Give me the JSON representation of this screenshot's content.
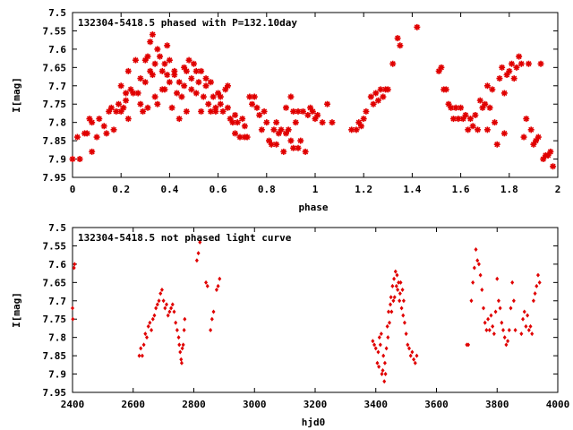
{
  "chart_data": [
    {
      "type": "scatter",
      "title": "132304-5418.5 phased with P=132.10day",
      "xlabel": "phase",
      "ylabel": "I[mag]",
      "xlim": [
        0,
        2
      ],
      "ylim": [
        7.95,
        7.5
      ],
      "y_inverted": true,
      "xticks": [
        "0",
        "0.2",
        "0.4",
        "0.6",
        "0.8",
        "1",
        "1.2",
        "1.4",
        "1.6",
        "1.8",
        "2"
      ],
      "yticks": [
        "7.5",
        "7.55",
        "7.6",
        "7.65",
        "7.7",
        "7.75",
        "7.8",
        "7.85",
        "7.9",
        "7.95"
      ],
      "grid": false,
      "marker": "plus-star",
      "color": "#e00000",
      "points": [
        [
          0.0,
          7.9
        ],
        [
          0.02,
          7.84
        ],
        [
          0.03,
          7.9
        ],
        [
          0.05,
          7.83
        ],
        [
          0.06,
          7.83
        ],
        [
          0.07,
          7.79
        ],
        [
          0.08,
          7.8
        ],
        [
          0.08,
          7.88
        ],
        [
          0.1,
          7.84
        ],
        [
          0.11,
          7.79
        ],
        [
          0.13,
          7.81
        ],
        [
          0.14,
          7.83
        ],
        [
          0.15,
          7.77
        ],
        [
          0.16,
          7.76
        ],
        [
          0.17,
          7.82
        ],
        [
          0.18,
          7.77
        ],
        [
          0.19,
          7.75
        ],
        [
          0.2,
          7.77
        ],
        [
          0.2,
          7.7
        ],
        [
          0.21,
          7.76
        ],
        [
          0.22,
          7.74
        ],
        [
          0.22,
          7.72
        ],
        [
          0.23,
          7.66
        ],
        [
          0.23,
          7.79
        ],
        [
          0.24,
          7.71
        ],
        [
          0.25,
          7.72
        ],
        [
          0.26,
          7.63
        ],
        [
          0.27,
          7.72
        ],
        [
          0.28,
          7.68
        ],
        [
          0.28,
          7.75
        ],
        [
          0.29,
          7.77
        ],
        [
          0.3,
          7.63
        ],
        [
          0.3,
          7.69
        ],
        [
          0.31,
          7.76
        ],
        [
          0.31,
          7.62
        ],
        [
          0.32,
          7.66
        ],
        [
          0.32,
          7.58
        ],
        [
          0.33,
          7.67
        ],
        [
          0.33,
          7.56
        ],
        [
          0.34,
          7.73
        ],
        [
          0.34,
          7.64
        ],
        [
          0.35,
          7.6
        ],
        [
          0.35,
          7.75
        ],
        [
          0.36,
          7.62
        ],
        [
          0.37,
          7.71
        ],
        [
          0.37,
          7.66
        ],
        [
          0.38,
          7.64
        ],
        [
          0.38,
          7.71
        ],
        [
          0.39,
          7.59
        ],
        [
          0.39,
          7.67
        ],
        [
          0.4,
          7.69
        ],
        [
          0.4,
          7.63
        ],
        [
          0.41,
          7.76
        ],
        [
          0.42,
          7.67
        ],
        [
          0.42,
          7.66
        ],
        [
          0.43,
          7.72
        ],
        [
          0.44,
          7.69
        ],
        [
          0.44,
          7.79
        ],
        [
          0.45,
          7.73
        ],
        [
          0.46,
          7.65
        ],
        [
          0.46,
          7.7
        ],
        [
          0.47,
          7.66
        ],
        [
          0.47,
          7.77
        ],
        [
          0.48,
          7.63
        ],
        [
          0.49,
          7.68
        ],
        [
          0.49,
          7.71
        ],
        [
          0.5,
          7.64
        ],
        [
          0.51,
          7.66
        ],
        [
          0.51,
          7.72
        ],
        [
          0.52,
          7.69
        ],
        [
          0.53,
          7.77
        ],
        [
          0.53,
          7.66
        ],
        [
          0.54,
          7.73
        ],
        [
          0.55,
          7.7
        ],
        [
          0.55,
          7.68
        ],
        [
          0.56,
          7.75
        ],
        [
          0.57,
          7.69
        ],
        [
          0.57,
          7.77
        ],
        [
          0.58,
          7.73
        ],
        [
          0.59,
          7.77
        ],
        [
          0.59,
          7.76
        ],
        [
          0.6,
          7.72
        ],
        [
          0.61,
          7.73
        ],
        [
          0.61,
          7.75
        ],
        [
          0.62,
          7.77
        ],
        [
          0.63,
          7.71
        ],
        [
          0.64,
          7.76
        ],
        [
          0.64,
          7.7
        ],
        [
          0.65,
          7.79
        ],
        [
          0.66,
          7.8
        ],
        [
          0.67,
          7.78
        ],
        [
          0.67,
          7.83
        ],
        [
          0.68,
          7.8
        ],
        [
          0.69,
          7.84
        ],
        [
          0.7,
          7.79
        ],
        [
          0.71,
          7.81
        ],
        [
          0.71,
          7.84
        ],
        [
          0.72,
          7.84
        ],
        [
          0.73,
          7.73
        ],
        [
          0.74,
          7.75
        ],
        [
          0.75,
          7.73
        ],
        [
          0.76,
          7.76
        ],
        [
          0.77,
          7.78
        ],
        [
          0.78,
          7.82
        ],
        [
          0.79,
          7.77
        ],
        [
          0.8,
          7.8
        ],
        [
          0.81,
          7.85
        ],
        [
          0.82,
          7.86
        ],
        [
          0.83,
          7.82
        ],
        [
          0.84,
          7.86
        ],
        [
          0.84,
          7.8
        ],
        [
          0.85,
          7.83
        ],
        [
          0.86,
          7.82
        ],
        [
          0.87,
          7.88
        ],
        [
          0.88,
          7.76
        ],
        [
          0.88,
          7.83
        ],
        [
          0.89,
          7.82
        ],
        [
          0.9,
          7.85
        ],
        [
          0.9,
          7.73
        ],
        [
          0.91,
          7.77
        ],
        [
          0.91,
          7.87
        ],
        [
          0.92,
          7.8
        ],
        [
          0.93,
          7.87
        ],
        [
          0.93,
          7.77
        ],
        [
          0.94,
          7.85
        ],
        [
          0.95,
          7.77
        ],
        [
          0.96,
          7.88
        ],
        [
          0.97,
          7.78
        ],
        [
          0.98,
          7.76
        ],
        [
          0.99,
          7.77
        ],
        [
          1.0,
          7.79
        ],
        [
          1.01,
          7.78
        ],
        [
          1.03,
          7.8
        ],
        [
          1.05,
          7.75
        ],
        [
          1.07,
          7.8
        ],
        [
          1.15,
          7.82
        ],
        [
          1.17,
          7.82
        ],
        [
          1.18,
          7.8
        ],
        [
          1.19,
          7.81
        ],
        [
          1.2,
          7.79
        ],
        [
          1.21,
          7.77
        ],
        [
          1.23,
          7.73
        ],
        [
          1.24,
          7.75
        ],
        [
          1.25,
          7.72
        ],
        [
          1.26,
          7.74
        ],
        [
          1.27,
          7.71
        ],
        [
          1.28,
          7.73
        ],
        [
          1.29,
          7.71
        ],
        [
          1.3,
          7.71
        ],
        [
          1.32,
          7.64
        ],
        [
          1.34,
          7.57
        ],
        [
          1.35,
          7.59
        ],
        [
          1.42,
          7.54
        ],
        [
          1.51,
          7.66
        ],
        [
          1.52,
          7.65
        ],
        [
          1.53,
          7.71
        ],
        [
          1.54,
          7.71
        ],
        [
          1.55,
          7.75
        ],
        [
          1.56,
          7.76
        ],
        [
          1.57,
          7.79
        ],
        [
          1.58,
          7.76
        ],
        [
          1.59,
          7.79
        ],
        [
          1.6,
          7.76
        ],
        [
          1.61,
          7.79
        ],
        [
          1.62,
          7.78
        ],
        [
          1.63,
          7.82
        ],
        [
          1.64,
          7.79
        ],
        [
          1.65,
          7.81
        ],
        [
          1.66,
          7.78
        ],
        [
          1.67,
          7.82
        ],
        [
          1.68,
          7.74
        ],
        [
          1.69,
          7.76
        ],
        [
          1.7,
          7.75
        ],
        [
          1.71,
          7.7
        ],
        [
          1.71,
          7.82
        ],
        [
          1.72,
          7.76
        ],
        [
          1.73,
          7.71
        ],
        [
          1.74,
          7.8
        ],
        [
          1.75,
          7.86
        ],
        [
          1.76,
          7.68
        ],
        [
          1.77,
          7.65
        ],
        [
          1.78,
          7.72
        ],
        [
          1.78,
          7.83
        ],
        [
          1.79,
          7.67
        ],
        [
          1.8,
          7.66
        ],
        [
          1.81,
          7.64
        ],
        [
          1.82,
          7.68
        ],
        [
          1.83,
          7.65
        ],
        [
          1.84,
          7.62
        ],
        [
          1.85,
          7.64
        ],
        [
          1.86,
          7.84
        ],
        [
          1.87,
          7.79
        ],
        [
          1.88,
          7.64
        ],
        [
          1.89,
          7.82
        ],
        [
          1.9,
          7.86
        ],
        [
          1.91,
          7.85
        ],
        [
          1.92,
          7.84
        ],
        [
          1.93,
          7.64
        ],
        [
          1.94,
          7.9
        ],
        [
          1.95,
          7.89
        ],
        [
          1.96,
          7.89
        ],
        [
          1.97,
          7.88
        ],
        [
          1.98,
          7.92
        ]
      ]
    },
    {
      "type": "scatter",
      "title": "132304-5418.5 not phased light curve",
      "xlabel": "hjd0",
      "ylabel": "I[mag]",
      "xlim": [
        2400,
        4000
      ],
      "ylim": [
        7.95,
        7.5
      ],
      "y_inverted": true,
      "xticks": [
        "2400",
        "2600",
        "2800",
        "3000",
        "3200",
        "3400",
        "3600",
        "3800",
        "4000"
      ],
      "yticks": [
        "7.5",
        "7.55",
        "7.6",
        "7.65",
        "7.7",
        "7.75",
        "7.8",
        "7.85",
        "7.9",
        "7.95"
      ],
      "grid": false,
      "marker": "diamond",
      "color": "#e00000",
      "points": [
        [
          2400,
          7.72
        ],
        [
          2401,
          7.75
        ],
        [
          2405,
          7.61
        ],
        [
          2407,
          7.6
        ],
        [
          2620,
          7.85
        ],
        [
          2625,
          7.83
        ],
        [
          2630,
          7.85
        ],
        [
          2635,
          7.82
        ],
        [
          2640,
          7.79
        ],
        [
          2645,
          7.8
        ],
        [
          2650,
          7.77
        ],
        [
          2655,
          7.76
        ],
        [
          2660,
          7.78
        ],
        [
          2665,
          7.75
        ],
        [
          2670,
          7.74
        ],
        [
          2675,
          7.72
        ],
        [
          2680,
          7.71
        ],
        [
          2685,
          7.7
        ],
        [
          2690,
          7.68
        ],
        [
          2695,
          7.67
        ],
        [
          2700,
          7.7
        ],
        [
          2705,
          7.72
        ],
        [
          2710,
          7.71
        ],
        [
          2715,
          7.74
        ],
        [
          2720,
          7.73
        ],
        [
          2725,
          7.72
        ],
        [
          2730,
          7.71
        ],
        [
          2735,
          7.73
        ],
        [
          2740,
          7.76
        ],
        [
          2745,
          7.78
        ],
        [
          2750,
          7.8
        ],
        [
          2752,
          7.82
        ],
        [
          2755,
          7.84
        ],
        [
          2758,
          7.86
        ],
        [
          2760,
          7.87
        ],
        [
          2762,
          7.83
        ],
        [
          2765,
          7.82
        ],
        [
          2768,
          7.78
        ],
        [
          2770,
          7.75
        ],
        [
          2810,
          7.59
        ],
        [
          2815,
          7.57
        ],
        [
          2820,
          7.54
        ],
        [
          2840,
          7.65
        ],
        [
          2845,
          7.66
        ],
        [
          2855,
          7.78
        ],
        [
          2860,
          7.75
        ],
        [
          2865,
          7.73
        ],
        [
          2875,
          7.67
        ],
        [
          2880,
          7.66
        ],
        [
          2885,
          7.64
        ],
        [
          3390,
          7.81
        ],
        [
          3395,
          7.82
        ],
        [
          3400,
          7.83
        ],
        [
          3405,
          7.87
        ],
        [
          3408,
          7.84
        ],
        [
          3410,
          7.88
        ],
        [
          3412,
          7.8
        ],
        [
          3415,
          7.82
        ],
        [
          3418,
          7.79
        ],
        [
          3420,
          7.9
        ],
        [
          3423,
          7.89
        ],
        [
          3425,
          7.85
        ],
        [
          3428,
          7.92
        ],
        [
          3430,
          7.87
        ],
        [
          3432,
          7.9
        ],
        [
          3435,
          7.83
        ],
        [
          3438,
          7.77
        ],
        [
          3440,
          7.8
        ],
        [
          3442,
          7.73
        ],
        [
          3445,
          7.76
        ],
        [
          3448,
          7.71
        ],
        [
          3450,
          7.69
        ],
        [
          3452,
          7.73
        ],
        [
          3455,
          7.66
        ],
        [
          3458,
          7.7
        ],
        [
          3460,
          7.64
        ],
        [
          3462,
          7.69
        ],
        [
          3465,
          7.62
        ],
        [
          3468,
          7.66
        ],
        [
          3470,
          7.63
        ],
        [
          3472,
          7.67
        ],
        [
          3475,
          7.65
        ],
        [
          3478,
          7.7
        ],
        [
          3480,
          7.68
        ],
        [
          3482,
          7.65
        ],
        [
          3485,
          7.72
        ],
        [
          3488,
          7.67
        ],
        [
          3490,
          7.74
        ],
        [
          3492,
          7.7
        ],
        [
          3495,
          7.76
        ],
        [
          3500,
          7.79
        ],
        [
          3505,
          7.82
        ],
        [
          3510,
          7.83
        ],
        [
          3515,
          7.85
        ],
        [
          3520,
          7.84
        ],
        [
          3525,
          7.86
        ],
        [
          3530,
          7.87
        ],
        [
          3535,
          7.85
        ],
        [
          3700,
          7.82
        ],
        [
          3705,
          7.82
        ],
        [
          3715,
          7.7
        ],
        [
          3720,
          7.65
        ],
        [
          3725,
          7.61
        ],
        [
          3730,
          7.56
        ],
        [
          3735,
          7.59
        ],
        [
          3740,
          7.6
        ],
        [
          3745,
          7.63
        ],
        [
          3750,
          7.67
        ],
        [
          3755,
          7.72
        ],
        [
          3760,
          7.76
        ],
        [
          3765,
          7.78
        ],
        [
          3770,
          7.75
        ],
        [
          3775,
          7.78
        ],
        [
          3780,
          7.74
        ],
        [
          3785,
          7.77
        ],
        [
          3790,
          7.79
        ],
        [
          3795,
          7.73
        ],
        [
          3800,
          7.64
        ],
        [
          3805,
          7.7
        ],
        [
          3810,
          7.72
        ],
        [
          3815,
          7.76
        ],
        [
          3820,
          7.78
        ],
        [
          3825,
          7.8
        ],
        [
          3830,
          7.82
        ],
        [
          3835,
          7.81
        ],
        [
          3840,
          7.78
        ],
        [
          3845,
          7.72
        ],
        [
          3850,
          7.65
        ],
        [
          3855,
          7.7
        ],
        [
          3860,
          7.78
        ],
        [
          3880,
          7.79
        ],
        [
          3885,
          7.75
        ],
        [
          3890,
          7.73
        ],
        [
          3895,
          7.77
        ],
        [
          3900,
          7.74
        ],
        [
          3905,
          7.78
        ],
        [
          3910,
          7.77
        ],
        [
          3915,
          7.79
        ],
        [
          3920,
          7.7
        ],
        [
          3925,
          7.68
        ],
        [
          3930,
          7.66
        ],
        [
          3935,
          7.63
        ],
        [
          3940,
          7.65
        ]
      ]
    }
  ]
}
